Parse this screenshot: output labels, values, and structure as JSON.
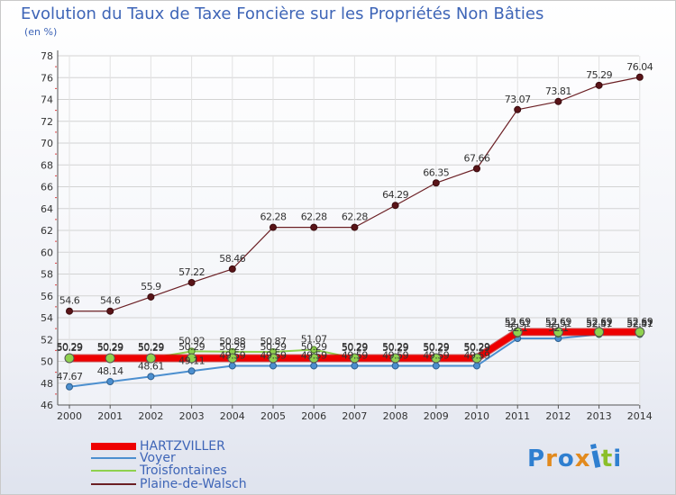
{
  "page": {
    "title": "Evolution du Taux de Taxe Foncière sur les Propriétés Non Bâties",
    "unit": "(en %)",
    "logo": "Proxiti"
  },
  "chart_data": {
    "type": "line",
    "title": "Evolution du Taux de Taxe Foncière sur les Propriétés Non Bâties",
    "ylabel": "(en %)",
    "xlabel": "",
    "ylim": [
      46,
      78
    ],
    "yticks": [
      46,
      48,
      50,
      52,
      54,
      56,
      58,
      60,
      62,
      64,
      66,
      68,
      70,
      72,
      74,
      76,
      78
    ],
    "categories": [
      "2000",
      "2001",
      "2002",
      "2003",
      "2004",
      "2005",
      "2006",
      "2007",
      "2008",
      "2009",
      "2010",
      "2011",
      "2012",
      "2013",
      "2014"
    ],
    "legend_position": "bottom-left",
    "series": [
      {
        "name": "Plaine-de-Walsch",
        "color": "#6b1f24",
        "values": [
          54.6,
          54.6,
          55.9,
          57.22,
          58.46,
          62.28,
          62.28,
          62.28,
          64.29,
          66.35,
          67.66,
          73.07,
          73.81,
          75.29,
          76.04
        ],
        "labels": [
          "54.6",
          "54.6",
          "55.9",
          "57.22",
          "58.46",
          "62.28",
          "62.28",
          "62.28",
          "64.29",
          "66.35",
          "67.66",
          "73.07",
          "73.81",
          "75.29",
          "76.04"
        ]
      },
      {
        "name": "Voyer",
        "color": "#4c8fcf",
        "values": [
          47.67,
          48.14,
          48.61,
          49.11,
          49.59,
          49.59,
          49.59,
          49.59,
          49.59,
          49.59,
          49.59,
          52.1,
          52.1,
          52.47,
          52.47
        ],
        "labels": [
          "47.67",
          "48.14",
          "48.61",
          "49.11",
          "49.59",
          "49.59",
          "49.59",
          "49.59",
          "49.59",
          "49.59",
          "49.59",
          "52.1",
          "52.1",
          "52.47",
          "52.47"
        ]
      },
      {
        "name": "Troisfontaines",
        "color": "#8fd14f",
        "values": [
          50.29,
          50.29,
          50.29,
          50.92,
          50.88,
          50.87,
          51.07,
          50.29,
          50.29,
          50.29,
          50.29,
          52.51,
          52.51,
          52.51,
          52.51
        ],
        "labels": [
          "50.29",
          "50.29",
          "50.29",
          "50.92",
          "50.88",
          "50.87",
          "51.07",
          "50.29",
          "50.29",
          "50.29",
          "50.29",
          "52.51",
          "52.51",
          "52.51",
          "52.51"
        ]
      },
      {
        "name": "HARTZVILLER",
        "color": "#ee0000",
        "values": [
          50.29,
          50.29,
          50.29,
          50.29,
          50.29,
          50.29,
          50.29,
          50.29,
          50.29,
          50.29,
          50.29,
          52.69,
          52.69,
          52.69,
          52.69
        ],
        "labels": [
          "50.29",
          "50.29",
          "50.29",
          "50.29",
          "50.29",
          "50.29",
          "50.29",
          "50.29",
          "50.29",
          "50.29",
          "50.29",
          "52.69",
          "52.69",
          "52.69",
          "52.69"
        ]
      }
    ],
    "legend": [
      {
        "name": "HARTZVILLER",
        "color": "#ee0000"
      },
      {
        "name": "Voyer",
        "color": "#4c8fcf"
      },
      {
        "name": "Troisfontaines",
        "color": "#8fd14f"
      },
      {
        "name": "Plaine-de-Walsch",
        "color": "#6b1f24"
      }
    ]
  }
}
